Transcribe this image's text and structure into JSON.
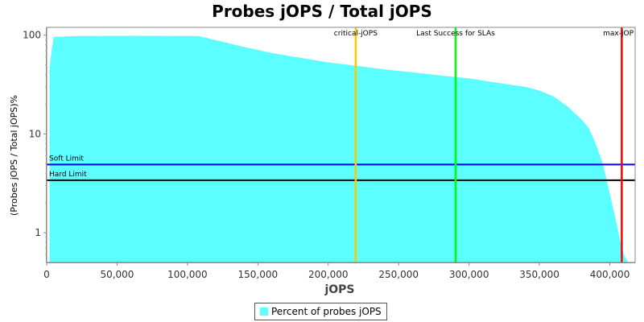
{
  "chart_data": {
    "type": "area",
    "title": "Probes jOPS / Total jOPS",
    "xlabel": "jOPS",
    "ylabel": "(Probes jOPS / Total jOPS)%",
    "xlim": [
      0,
      418000
    ],
    "ylim": [
      0.5,
      120
    ],
    "y_scale": "log",
    "x_ticks": [
      0,
      50000,
      100000,
      150000,
      200000,
      250000,
      300000,
      350000,
      400000
    ],
    "x_tick_labels": [
      "0",
      "50,000",
      "100,000",
      "150,000",
      "200,000",
      "250,000",
      "300,000",
      "350,000",
      "400,000"
    ],
    "y_ticks": [
      1,
      10,
      100
    ],
    "y_tick_labels": [
      "1",
      "10",
      "100"
    ],
    "grid": false,
    "legend": "bottom",
    "series": [
      {
        "name": "Percent of probes jOPS",
        "color": "#5cffff",
        "x": [
          2000,
          3500,
          5000,
          20000,
          60000,
          108000,
          120000,
          140000,
          160000,
          180000,
          200000,
          220000,
          240000,
          260000,
          280000,
          300000,
          320000,
          340000,
          350000,
          360000,
          370000,
          380000,
          385000,
          390000,
          395000,
          400000,
          405000,
          408000,
          410000,
          413000,
          418000
        ],
        "values": [
          45,
          70,
          96,
          98,
          98.5,
          98,
          89,
          76,
          66,
          59,
          53,
          49,
          45,
          42,
          39,
          36.5,
          33,
          30,
          27.5,
          24,
          19,
          14,
          11.5,
          8,
          5,
          2.5,
          1.2,
          0.75,
          0.6,
          0.5,
          0.5
        ]
      }
    ],
    "hlines": [
      {
        "label": "Soft Limit",
        "value": 4.9,
        "color": "#0000ff"
      },
      {
        "label": "Hard Limit",
        "value": 3.4,
        "color": "#000000"
      }
    ],
    "vlines": [
      {
        "label": "critical-jOPS",
        "value": 219500,
        "color": "#ffc800"
      },
      {
        "label": "Last Success for SLAs",
        "value": 290500,
        "color": "#00ff00"
      },
      {
        "label": "max-jOP",
        "value": 408500,
        "color": "#ff0000"
      }
    ]
  }
}
